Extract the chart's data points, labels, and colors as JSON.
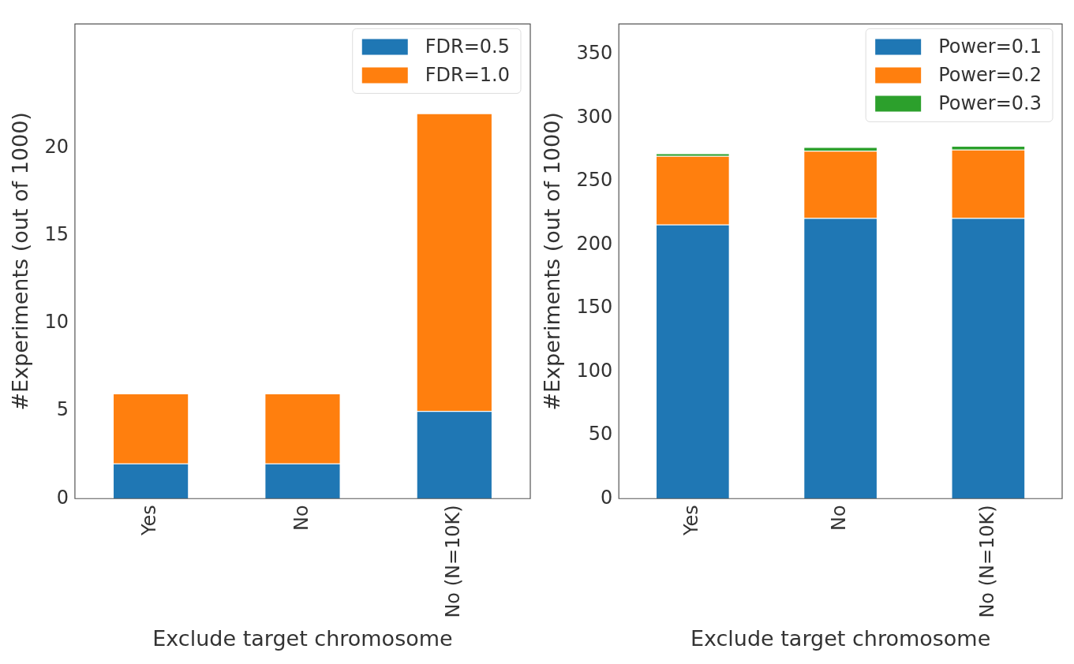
{
  "chart_data": [
    {
      "type": "bar",
      "stacked": true,
      "categories": [
        "Yes",
        "No",
        "No (N=10K)"
      ],
      "xlabel": "Exclude target chromosome",
      "ylabel": "#Experiments (out of 1000)",
      "ylim": [
        0,
        27.1
      ],
      "yticks": [
        0,
        5,
        10,
        15,
        20
      ],
      "grid": false,
      "legend": "top right",
      "series": [
        {
          "name": "FDR=0.5",
          "color": "#1f77b4",
          "values": [
            2,
            2,
            5
          ]
        },
        {
          "name": "FDR=1.0",
          "color": "#ff7f0e",
          "values": [
            4,
            4,
            17
          ]
        }
      ]
    },
    {
      "type": "bar",
      "stacked": true,
      "categories": [
        "Yes",
        "No",
        "No (N=10K)"
      ],
      "xlabel": "Exclude target chromosome",
      "ylabel": "#Experiments (out of 1000)",
      "ylim": [
        0,
        374
      ],
      "yticks": [
        0,
        50,
        100,
        150,
        200,
        250,
        300,
        350
      ],
      "grid": false,
      "legend": "top right",
      "series": [
        {
          "name": "Power=0.1",
          "color": "#1f77b4",
          "values": [
            216,
            221,
            221
          ]
        },
        {
          "name": "Power=0.2",
          "color": "#ff7f0e",
          "values": [
            54,
            53,
            54
          ]
        },
        {
          "name": "Power=0.3",
          "color": "#2ca02c",
          "values": [
            2,
            3,
            3
          ]
        }
      ]
    }
  ]
}
